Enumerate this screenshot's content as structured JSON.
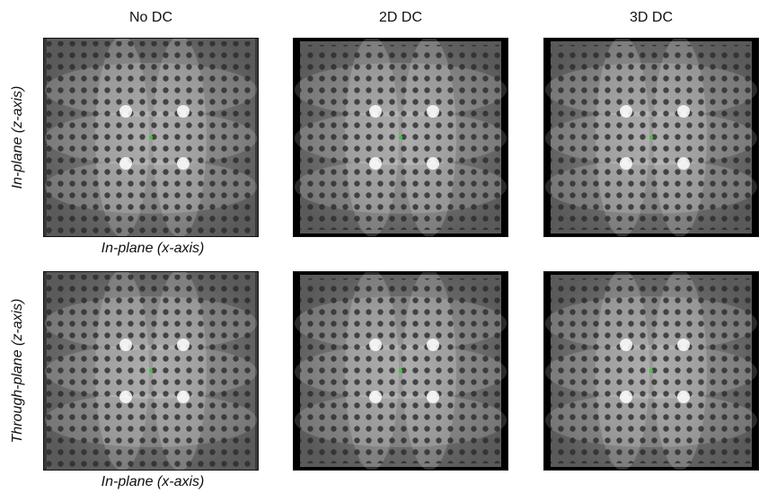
{
  "columns": [
    "No DC",
    "2D DC",
    "3D DC"
  ],
  "rows": [
    {
      "label": "In-plane (z-axis)",
      "x_label": "In-plane (x-axis)"
    },
    {
      "label": "Through-plane (z-axis)",
      "x_label": "In-plane (x-axis)"
    }
  ]
}
